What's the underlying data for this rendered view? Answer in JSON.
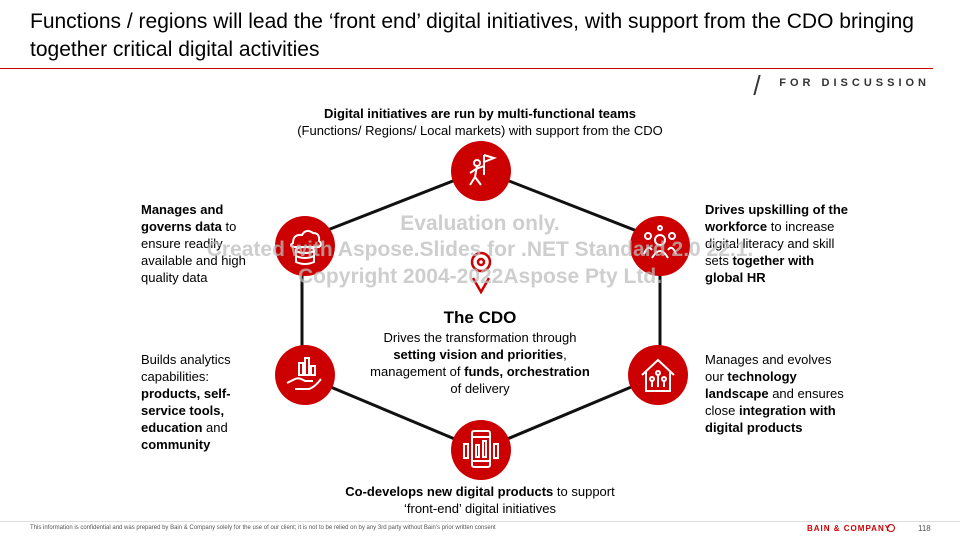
{
  "header": {
    "title": "Functions / regions will lead the ‘front end’ digital initiatives, with support from the CDO bringing together critical digital activities",
    "tag": "FOR DISCUSSION"
  },
  "diagram": {
    "top": {
      "bold": "Digital initiatives are run by multi-functional teams",
      "normal": "(Functions/ Regions/ Local markets) with support from the CDO"
    },
    "left_upper": {
      "b1": "Manages and governs data",
      "t1": " to ensure readily available and high quality data"
    },
    "right_upper": {
      "b1": "Drives upskilling of the workforce",
      "t1": " to increase digital literacy and skill sets ",
      "b2": "together with global HR"
    },
    "left_lower": {
      "t1": "Builds analytics capabilities: ",
      "b1": "products, self-service tools, education",
      "t2": " and ",
      "b2": "community"
    },
    "right_lower": {
      "t1": "Manages and evolves our ",
      "b1": "technology landscape",
      "t2": " and ensures close ",
      "b2": "integration with digital products"
    },
    "bottom": {
      "b1": "Co-develops new digital products",
      "t1": " to support ‘front-end’ digital initiatives"
    },
    "center": {
      "title": "The CDO",
      "t1": "Drives the transformation through ",
      "b1": "setting vision and priorities",
      "t2": ", management of ",
      "b2": "funds, orchestration",
      "t3": " of delivery"
    },
    "icons": [
      "flag-person-icon",
      "database-cloud-icon",
      "people-skills-icon",
      "analytics-hand-icon",
      "smart-home-icon",
      "mobile-app-icon"
    ]
  },
  "watermark": {
    "line1": "Evaluation only.",
    "line2": "Created with Aspose.Slides for .NET Standard 2.0 22.1.",
    "line3": "Copyright 2004-2022Aspose Pty Ltd."
  },
  "footer": {
    "disclaimer": "This information is confidential and was prepared by Bain & Company solely for the use of our client; it is not to be relied on by any 3rd party without Bain's prior written consent",
    "brand": "BAIN & COMPANY",
    "page": "118"
  },
  "colors": {
    "accent": "#cc0000",
    "line": "#111111"
  }
}
